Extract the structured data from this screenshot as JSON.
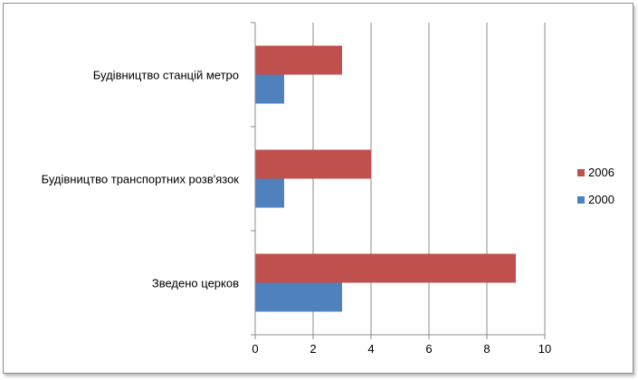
{
  "chart_data": {
    "type": "bar",
    "orientation": "horizontal",
    "title": "",
    "xlabel": "",
    "ylabel": "",
    "categories": [
      "Будівництво станцій метро",
      "Будівництво транспортних розв'язок",
      "Зведено церков"
    ],
    "series": [
      {
        "name": "2006",
        "values": [
          3,
          4,
          9
        ],
        "color": "#c0504d"
      },
      {
        "name": "2000",
        "values": [
          1,
          1,
          3
        ],
        "color": "#4f81bd"
      }
    ],
    "xlim": [
      0,
      10
    ],
    "xticks": [
      "0",
      "2",
      "4",
      "6",
      "8",
      "10"
    ],
    "grid": true,
    "legend_position": "right"
  }
}
